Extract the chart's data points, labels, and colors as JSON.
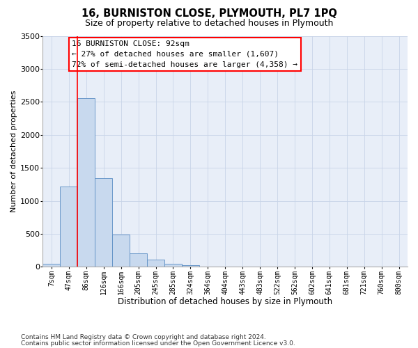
{
  "title1": "16, BURNISTON CLOSE, PLYMOUTH, PL7 1PQ",
  "title2": "Size of property relative to detached houses in Plymouth",
  "xlabel": "Distribution of detached houses by size in Plymouth",
  "ylabel": "Number of detached properties",
  "bin_labels": [
    "7sqm",
    "47sqm",
    "86sqm",
    "126sqm",
    "166sqm",
    "205sqm",
    "245sqm",
    "285sqm",
    "324sqm",
    "364sqm",
    "404sqm",
    "443sqm",
    "483sqm",
    "522sqm",
    "562sqm",
    "602sqm",
    "641sqm",
    "681sqm",
    "721sqm",
    "760sqm",
    "800sqm"
  ],
  "bar_heights": [
    50,
    1220,
    2560,
    1340,
    490,
    200,
    110,
    50,
    30,
    0,
    0,
    0,
    0,
    0,
    0,
    0,
    0,
    0,
    0,
    0,
    0
  ],
  "bar_color": "#c8d9ee",
  "bar_edge_color": "#5b8ec4",
  "vline_color": "red",
  "vline_pos": 1.5,
  "annotation_text": "16 BURNISTON CLOSE: 92sqm\n← 27% of detached houses are smaller (1,607)\n72% of semi-detached houses are larger (4,358) →",
  "annotation_box_facecolor": "white",
  "annotation_box_edgecolor": "red",
  "ylim": [
    0,
    3500
  ],
  "yticks": [
    0,
    500,
    1000,
    1500,
    2000,
    2500,
    3000,
    3500
  ],
  "grid_color": "#c8d4e8",
  "background_color": "#e8eef8",
  "footer1": "Contains HM Land Registry data © Crown copyright and database right 2024.",
  "footer2": "Contains public sector information licensed under the Open Government Licence v3.0.",
  "title1_fontsize": 10.5,
  "title2_fontsize": 9,
  "xlabel_fontsize": 8.5,
  "ylabel_fontsize": 8,
  "ytick_fontsize": 8,
  "xtick_fontsize": 7,
  "annotation_fontsize": 8,
  "footer_fontsize": 6.5
}
